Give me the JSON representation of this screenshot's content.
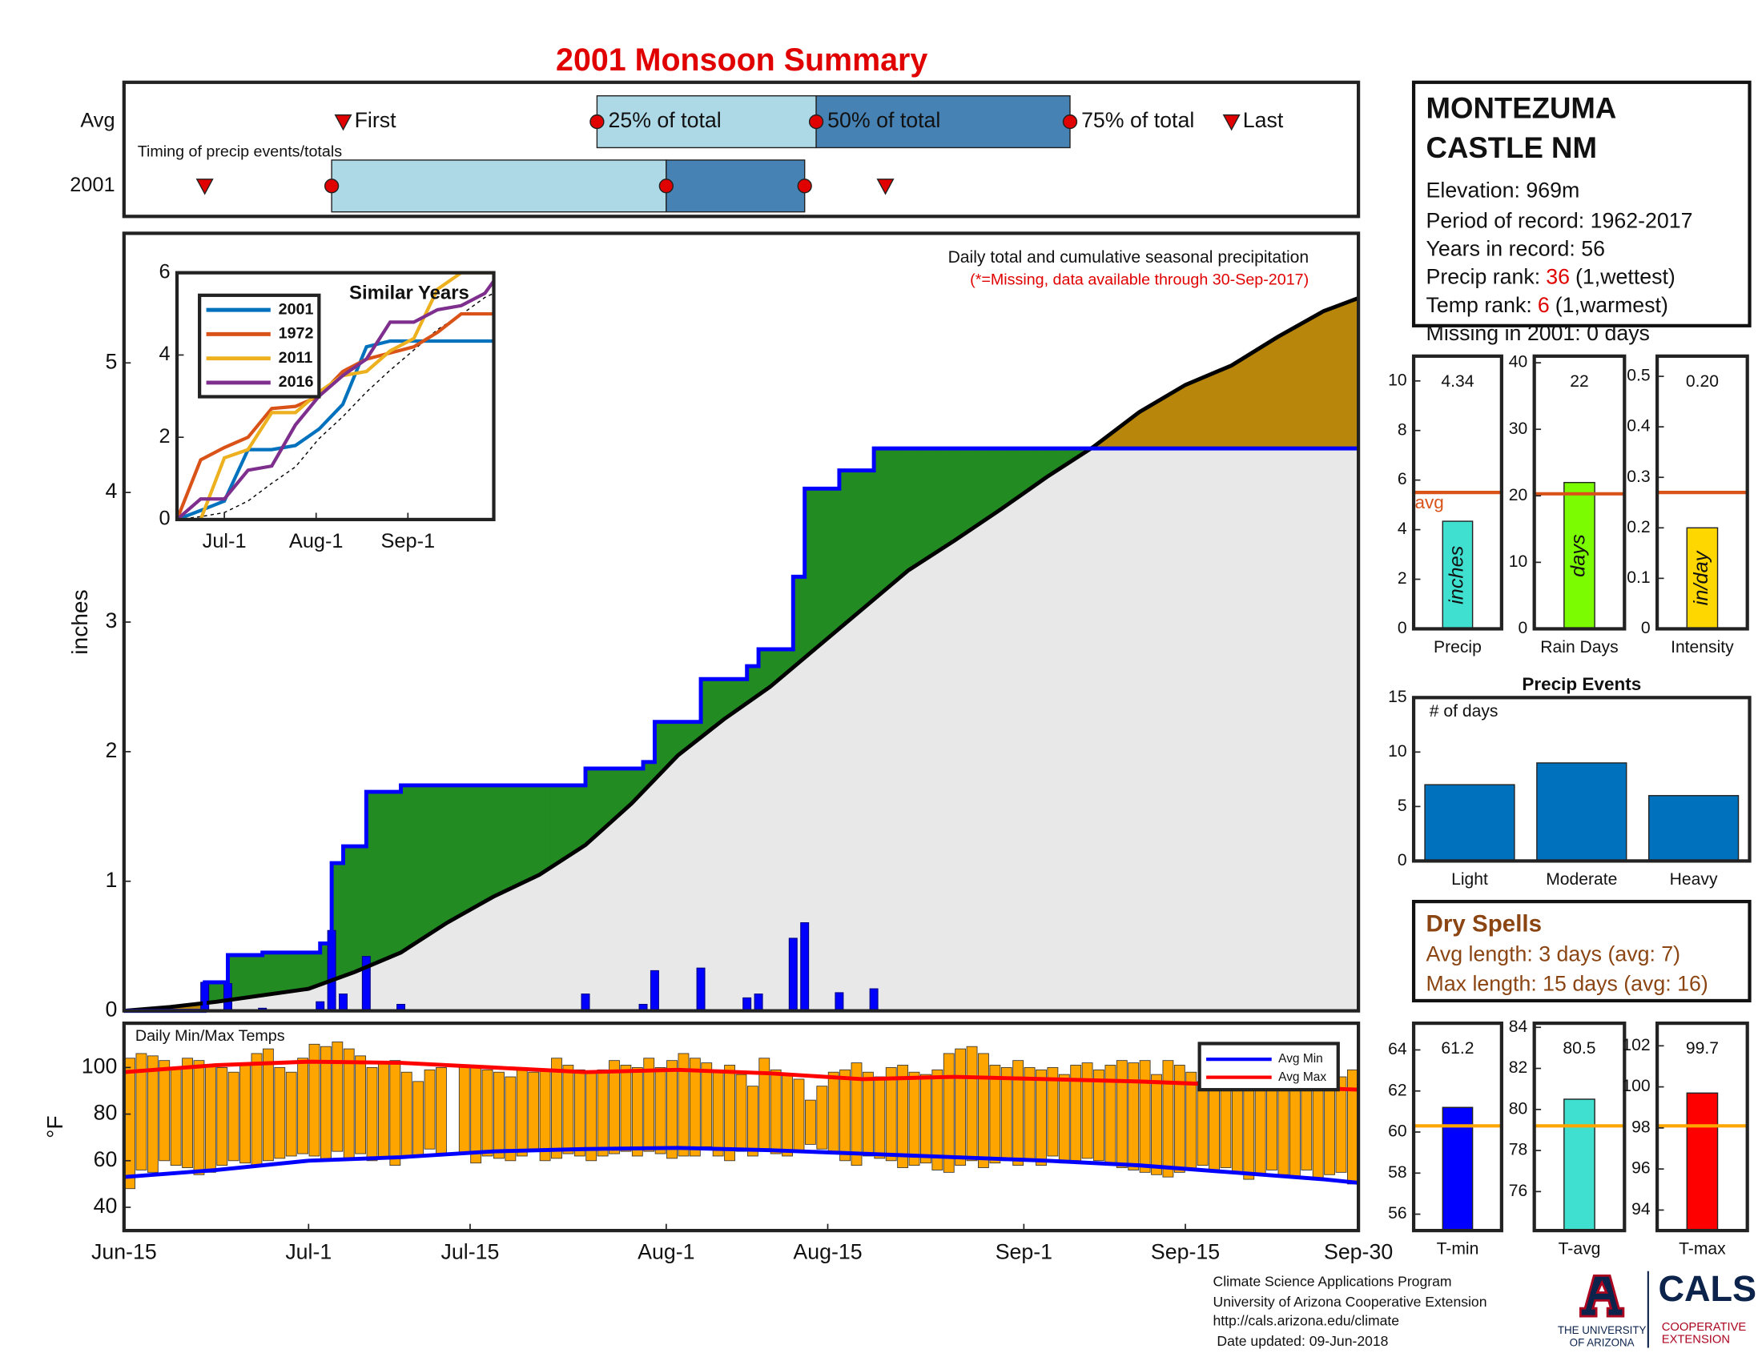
{
  "title": "2001 Monsoon Summary",
  "station": {
    "name_lines": [
      "MONTEZUMA",
      "CASTLE NM"
    ],
    "elevation": "Elevation: 969m",
    "period": "Period of record: 1962-2017",
    "years": "Years in record: 56",
    "precip_rank": [
      "Precip rank:",
      "36",
      "(1,wettest)"
    ],
    "temp_rank": [
      "Temp rank:",
      "6",
      "(1,warmest)"
    ],
    "missing": "Missing in 2001: 0 days"
  },
  "dry_spells": {
    "title": "Dry Spells",
    "lines": [
      "Avg length: 3 days (avg: 7)",
      "Max length: 15 days (avg: 16)"
    ]
  },
  "footer": {
    "lines": [
      "Climate Science Applications Program",
      "University of Arizona Cooperative Extension",
      "http://cals.arizona.edu/climate",
      " Date updated: 09-Jun-2018"
    ],
    "university": [
      "THE UNIVERSITY",
      "OF ARIZONA"
    ],
    "cals": "CALS",
    "extension": [
      "COOPERATIVE",
      "EXTENSION"
    ]
  },
  "chart_data": [
    {
      "type": "timing",
      "annotation": "Timing of precip events/totals",
      "categories": [
        "Avg",
        "2001"
      ],
      "xlim": [
        0,
        107
      ],
      "series": [
        {
          "name": "First",
          "values": [
            19,
            7
          ]
        },
        {
          "name": "25% of total",
          "values": [
            41,
            18
          ]
        },
        {
          "name": "50% of total",
          "values": [
            60,
            47
          ]
        },
        {
          "name": "75% of total",
          "values": [
            82,
            59
          ]
        },
        {
          "name": "Last",
          "values": [
            96,
            66
          ]
        }
      ],
      "markers": [
        "triangle",
        "circle",
        "circle",
        "circle",
        "triangle"
      ],
      "marker_color": "#e00000",
      "box_colors": [
        "#add8e6",
        "#4682b4"
      ]
    },
    {
      "type": "step_area",
      "ylabel": "inches",
      "annotations": [
        "Daily total and cumulative seasonal precipitation",
        "(*=Missing, data available through 30-Sep-2017)"
      ],
      "annotation_colors": [
        "#111111",
        "#e00000"
      ],
      "xlim": [
        0,
        107
      ],
      "ylim": [
        0,
        6
      ],
      "yticks": [
        0,
        1,
        2,
        3,
        4,
        5
      ],
      "daily": {
        "color": "#0000ff",
        "line_color": "#0000ff",
        "x": [
          7,
          9,
          12,
          17,
          18,
          19,
          21,
          24,
          40,
          45,
          46,
          50,
          54,
          55,
          58,
          59,
          62,
          65
        ],
        "values": [
          0.22,
          0.21,
          0.02,
          0.07,
          0.62,
          0.13,
          0.42,
          0.05,
          0.13,
          0.05,
          0.31,
          0.33,
          0.1,
          0.13,
          0.56,
          0.68,
          0.14,
          0.17
        ]
      },
      "average": {
        "color": "#000000",
        "x": [
          0,
          4,
          8,
          12,
          16,
          20,
          24,
          28,
          32,
          36,
          40,
          44,
          48,
          52,
          56,
          60,
          64,
          68,
          72,
          76,
          80,
          84,
          88,
          92,
          96,
          100,
          104,
          107
        ],
        "values": [
          0,
          0.03,
          0.07,
          0.12,
          0.17,
          0.3,
          0.45,
          0.68,
          0.88,
          1.05,
          1.28,
          1.6,
          1.97,
          2.25,
          2.5,
          2.8,
          3.1,
          3.4,
          3.63,
          3.87,
          4.12,
          4.35,
          4.62,
          4.83,
          4.98,
          5.2,
          5.4,
          5.5
        ]
      },
      "above_color": "#228b22",
      "below_color": "#b8860b",
      "base_color": "#e8e8e8"
    },
    {
      "type": "line",
      "title": "Similar Years",
      "legend": "upper left",
      "xlim": [
        0,
        107
      ],
      "ylim": [
        0,
        6
      ],
      "yticks": [
        0,
        2,
        4,
        6
      ],
      "xticks": [
        {
          "value": 16,
          "label": "Jul-1"
        },
        {
          "value": 47,
          "label": "Aug-1"
        },
        {
          "value": 78,
          "label": "Sep-1"
        }
      ],
      "x": [
        0,
        8,
        16,
        24,
        32,
        40,
        48,
        56,
        64,
        72,
        80,
        88,
        96,
        104,
        107
      ],
      "series": [
        {
          "name": "2001",
          "color": "#0072bd",
          "values": [
            0,
            0.22,
            0.45,
            1.7,
            1.7,
            1.8,
            2.2,
            2.8,
            4.2,
            4.34,
            4.34,
            4.34,
            4.34,
            4.34,
            4.34
          ]
        },
        {
          "name": "1972",
          "color": "#d95319",
          "values": [
            0,
            1.45,
            1.75,
            2.0,
            2.7,
            2.75,
            3.0,
            3.6,
            3.9,
            4.05,
            4.2,
            4.55,
            5.0,
            5.0,
            5.0
          ]
        },
        {
          "name": "2011",
          "color": "#edb120",
          "values": [
            0,
            0,
            1.5,
            1.7,
            2.6,
            2.6,
            3.1,
            3.5,
            3.6,
            4.1,
            4.4,
            5.6,
            6.0,
            6.0,
            6.0
          ]
        },
        {
          "name": "2016",
          "color": "#7e2f8e",
          "values": [
            0,
            0.5,
            0.5,
            1.2,
            1.3,
            2.3,
            3.0,
            3.5,
            3.9,
            4.8,
            4.8,
            5.1,
            5.2,
            5.5,
            5.8
          ]
        }
      ],
      "average": {
        "color": "#000000",
        "values": [
          0,
          0.07,
          0.17,
          0.45,
          0.88,
          1.28,
          1.97,
          2.5,
          3.1,
          3.63,
          4.12,
          4.62,
          4.98,
          5.4,
          5.5
        ]
      }
    },
    {
      "type": "bar",
      "categories": [
        "Precip"
      ],
      "values": [
        4.34
      ],
      "bar_labels": [
        "inches"
      ],
      "data_labels": true,
      "color": "#40e0d0",
      "ylim": [
        0,
        11
      ],
      "yticks": [
        0,
        2,
        4,
        6,
        8,
        10
      ],
      "avg": 5.5,
      "avg_label": "avg",
      "avg_color": "#d95319"
    },
    {
      "type": "bar",
      "categories": [
        "Rain Days"
      ],
      "values": [
        22
      ],
      "bar_labels": [
        "days"
      ],
      "data_labels": true,
      "color": "#7cfc00",
      "ylim": [
        0,
        41
      ],
      "yticks": [
        0,
        10,
        20,
        30,
        40
      ],
      "avg": 20.3,
      "avg_color": "#d95319"
    },
    {
      "type": "bar",
      "categories": [
        "Intensity"
      ],
      "values": [
        0.2
      ],
      "value_labels": [
        "0.20"
      ],
      "bar_labels": [
        "in/day"
      ],
      "data_labels": true,
      "color": "#ffd700",
      "ylim": [
        0,
        0.54
      ],
      "yticks": [
        0,
        0.1,
        0.2,
        0.3,
        0.4,
        0.5
      ],
      "avg": 0.27,
      "avg_color": "#d95319"
    },
    {
      "type": "bar",
      "title": "Precip Events",
      "annotation": "# of days",
      "categories": [
        "Light",
        "Moderate",
        "Heavy"
      ],
      "values": [
        7,
        9,
        6
      ],
      "color": "#0072bd",
      "ylim": [
        0,
        15
      ],
      "yticks": [
        0,
        5,
        10,
        15
      ]
    },
    {
      "type": "range_bar",
      "title": "Daily Min/Max Temps",
      "ylabel": "°F",
      "legend": "upper right",
      "xlim": [
        0,
        107
      ],
      "ylim": [
        30,
        119
      ],
      "yticks": [
        40,
        60,
        80,
        100
      ],
      "xticks": [
        {
          "value": 0,
          "label": "Jun-15"
        },
        {
          "value": 16,
          "label": "Jul-1"
        },
        {
          "value": 30,
          "label": "Jul-15"
        },
        {
          "value": 47,
          "label": "Aug-1"
        },
        {
          "value": 61,
          "label": "Aug-15"
        },
        {
          "value": 78,
          "label": "Sep-1"
        },
        {
          "value": 92,
          "label": "Sep-15"
        },
        {
          "value": 107,
          "label": "Sep-30"
        }
      ],
      "color": "#ffa500",
      "min": [
        48,
        56,
        55,
        60,
        58,
        57,
        54,
        55,
        58,
        60,
        59,
        58,
        60,
        61,
        62,
        63,
        62,
        60,
        64,
        61,
        63,
        60,
        61,
        58,
        62,
        62,
        65,
        63,
        null,
        63,
        59,
        62,
        61,
        60,
        62,
        64,
        60,
        61,
        63,
        62,
        60,
        62,
        63,
        64,
        62,
        64,
        63,
        61,
        62,
        62,
        66,
        62,
        60,
        64,
        62,
        65,
        63,
        62,
        64,
        67,
        65,
        63,
        60,
        58,
        62,
        61,
        60,
        57,
        58,
        59,
        56,
        55,
        58,
        60,
        57,
        59,
        60,
        58,
        60,
        58,
        62,
        59,
        60,
        61,
        60,
        58,
        57,
        56,
        55,
        54,
        53,
        55,
        56,
        58,
        56,
        57,
        55,
        52,
        54,
        56,
        54,
        53,
        56,
        52,
        54,
        55,
        50
      ],
      "max": [
        104,
        106,
        105,
        103,
        100,
        104,
        103,
        101,
        100,
        98,
        102,
        106,
        108,
        100,
        98,
        104,
        110,
        109,
        111,
        108,
        105,
        100,
        102,
        103,
        98,
        94,
        99,
        100,
        null,
        101,
        100,
        99,
        98,
        96,
        100,
        98,
        99,
        104,
        101,
        99,
        98,
        99,
        103,
        101,
        100,
        104,
        100,
        103,
        106,
        104,
        102,
        99,
        101,
        97,
        92,
        104,
        99,
        97,
        95,
        86,
        92,
        98,
        99,
        102,
        98,
        96,
        100,
        101,
        98,
        97,
        99,
        106,
        108,
        109,
        106,
        101,
        100,
        103,
        100,
        99,
        100,
        97,
        101,
        102,
        99,
        101,
        103,
        102,
        103,
        97,
        103,
        101,
        98,
        94,
        100,
        96,
        98,
        95,
        97,
        97,
        94,
        98,
        96,
        97,
        93,
        96,
        99
      ],
      "x": [
        0,
        8,
        16,
        24,
        32,
        40,
        48,
        56,
        64,
        72,
        80,
        88,
        96,
        104,
        107
      ],
      "series": [
        {
          "name": "Avg Min",
          "color": "#0000ff",
          "values": [
            53,
            56,
            60,
            61.5,
            64,
            65,
            65.5,
            64.5,
            63,
            61.5,
            60,
            58,
            55,
            52,
            50.5
          ]
        },
        {
          "name": "Avg Max",
          "color": "#ff0000",
          "values": [
            98,
            101,
            102.5,
            102,
            100,
            98,
            99,
            97.5,
            95,
            96,
            95,
            94,
            92.5,
            91,
            90.5
          ]
        }
      ]
    },
    {
      "type": "bar",
      "categories": [
        "T-min"
      ],
      "values": [
        61.2
      ],
      "data_labels": true,
      "color": "#0000ff",
      "ylim": [
        55.2,
        65.3
      ],
      "yticks": [
        56,
        58,
        60,
        62,
        64
      ],
      "avg": 60.3,
      "avg_color": "#ffa500"
    },
    {
      "type": "bar",
      "categories": [
        "T-avg"
      ],
      "values": [
        80.5
      ],
      "data_labels": true,
      "color": "#40e0d0",
      "ylim": [
        74.1,
        84.2
      ],
      "yticks": [
        76,
        78,
        80,
        82,
        84
      ],
      "avg": 79.2,
      "avg_color": "#ffa500"
    },
    {
      "type": "bar",
      "categories": [
        "T-max"
      ],
      "values": [
        99.7
      ],
      "data_labels": true,
      "color": "#ff0000",
      "ylim": [
        93,
        103.1
      ],
      "yticks": [
        94,
        96,
        98,
        100,
        102
      ],
      "avg": 98.1,
      "avg_color": "#ffa500"
    }
  ]
}
